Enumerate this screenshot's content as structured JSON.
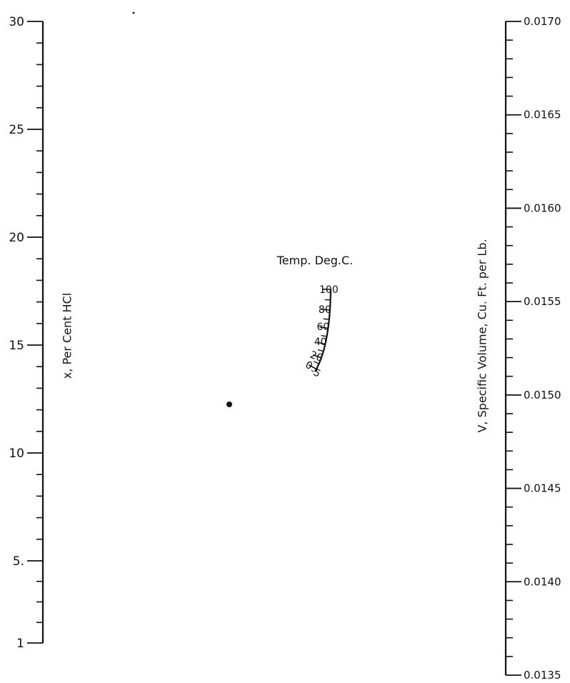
{
  "chart_data": {
    "type": "nomogram",
    "scales": {
      "x": {
        "title": "x, Per Cent HCl",
        "ticks": [
          {
            "value": 1,
            "label": "1"
          },
          {
            "value": 5,
            "label": "5."
          },
          {
            "value": 10,
            "label": "10"
          },
          {
            "value": 15,
            "label": "15"
          },
          {
            "value": 20,
            "label": "20"
          },
          {
            "value": 25,
            "label": "25"
          },
          {
            "value": 30,
            "label": "30"
          }
        ],
        "minor_ticks": [
          2,
          3,
          4,
          6,
          7,
          8,
          9,
          11,
          12,
          13,
          14,
          16,
          17,
          18,
          19,
          21,
          22,
          23,
          24,
          26,
          27,
          28,
          29
        ]
      },
      "temperature": {
        "title": "Temp. Deg.C.",
        "ticks": [
          {
            "value": -5,
            "label": "-5"
          },
          {
            "value": 0,
            "label": "0"
          },
          {
            "value": 20,
            "label": "20"
          },
          {
            "value": 40,
            "label": "40"
          },
          {
            "value": 60,
            "label": "60"
          },
          {
            "value": 80,
            "label": "80"
          },
          {
            "value": 100,
            "label": "100"
          }
        ],
        "minor_ticks": [
          10,
          30,
          50,
          70,
          90
        ]
      },
      "V": {
        "title": "V, Specific Volume, Cu. Ft. per Lb.",
        "ticks": [
          {
            "value": 0.0135,
            "label": "0.0135"
          },
          {
            "value": 0.014,
            "label": "0.0140"
          },
          {
            "value": 0.0145,
            "label": "0.0145"
          },
          {
            "value": 0.015,
            "label": "0.0150"
          },
          {
            "value": 0.0155,
            "label": "0.0155"
          },
          {
            "value": 0.016,
            "label": "0.0160"
          },
          {
            "value": 0.0165,
            "label": "0.0165"
          },
          {
            "value": 0.017,
            "label": "0.0170"
          }
        ],
        "minor_step": 0.0001
      }
    }
  }
}
